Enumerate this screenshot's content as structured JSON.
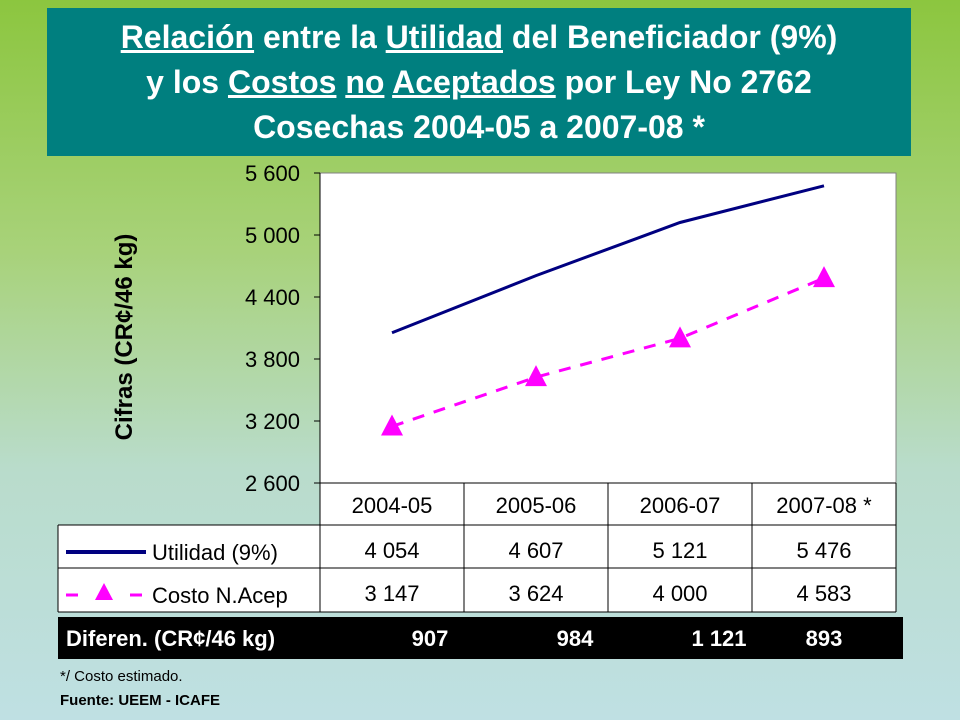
{
  "title": {
    "line1": [
      "Relación",
      " entre la ",
      "Utilidad",
      " del Beneficiador (9%)"
    ],
    "line2": [
      "y los ",
      "Costos",
      " ",
      "no",
      " ",
      "Aceptados",
      " por Ley No 2762"
    ],
    "line3": "Cosechas 2004-05 a 2007-08 *"
  },
  "chart_data": {
    "type": "line",
    "ylabel": "Cifras (CR¢/46 kg)",
    "ylim": [
      2600,
      5600
    ],
    "yticks": [
      2600,
      3200,
      3800,
      4400,
      5000,
      5600
    ],
    "ytick_labels": [
      "2 600",
      "3 200",
      "3 800",
      "4 400",
      "5 000",
      "5 600"
    ],
    "categories": [
      "2004-05",
      "2005-06",
      "2006-07",
      "2007-08 *"
    ],
    "grid": false,
    "series": [
      {
        "name": "Utilidad (9%)",
        "values": [
          4054,
          4607,
          5121,
          5476
        ],
        "labels": [
          "4 054",
          "4 607",
          "5 121",
          "5 476"
        ],
        "color": "#000080",
        "style": "solid"
      },
      {
        "name": "Costo N.Acep",
        "values": [
          3147,
          3624,
          4000,
          4583
        ],
        "labels": [
          "3 147",
          "3 624",
          "4 000",
          "4 583"
        ],
        "color": "#ff00ff",
        "style": "dashed",
        "marker": "triangle"
      }
    ]
  },
  "summary": {
    "label": "Diferen. (CR¢/46 kg)",
    "values": [
      "907",
      "984",
      "1 121",
      "893"
    ]
  },
  "footnote": "*/ Costo estimado.",
  "source": "Fuente: UEEM - ICAFE"
}
